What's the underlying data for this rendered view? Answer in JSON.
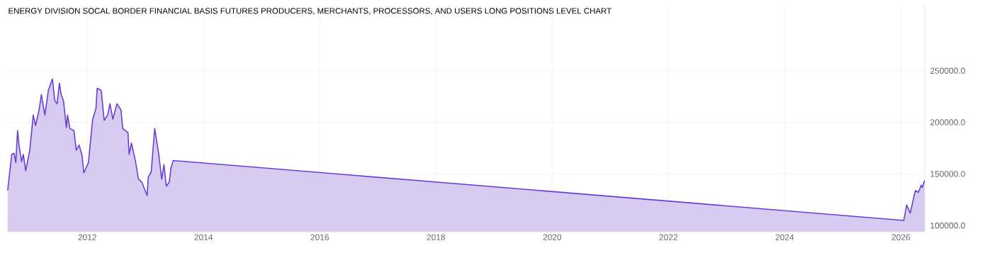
{
  "chart_data": {
    "type": "area",
    "title": "ENERGY DIVISION SOCAL BORDER FINANCIAL BASIS FUTURES PRODUCERS, MERCHANTS, PROCESSORS, AND USERS LONG POSITIONS LEVEL CHART",
    "x": [
      2010.63,
      2010.7,
      2010.74,
      2010.77,
      2010.8,
      2010.83,
      2010.87,
      2010.9,
      2010.94,
      2011.01,
      2011.07,
      2011.11,
      2011.17,
      2011.21,
      2011.27,
      2011.33,
      2011.4,
      2011.44,
      2011.48,
      2011.52,
      2011.55,
      2011.59,
      2011.64,
      2011.66,
      2011.7,
      2011.77,
      2011.81,
      2011.86,
      2011.91,
      2011.94,
      2012.02,
      2012.09,
      2012.15,
      2012.17,
      2012.24,
      2012.29,
      2012.35,
      2012.39,
      2012.44,
      2012.51,
      2012.58,
      2012.61,
      2012.7,
      2012.72,
      2012.76,
      2012.83,
      2012.88,
      2012.94,
      2012.98,
      2013.03,
      2013.05,
      2013.1,
      2013.16,
      2013.23,
      2013.28,
      2013.32,
      2013.36,
      2013.41,
      2013.44,
      2013.48,
      2026.05,
      2026.1,
      2026.16,
      2026.25,
      2026.3,
      2026.35,
      2026.37,
      2026.41
    ],
    "series": [
      {
        "color": "#6a3fd0",
        "values": [
          134000,
          169000,
          170000,
          161000,
          192000,
          176000,
          162000,
          169000,
          153000,
          173000,
          207000,
          197000,
          212000,
          227000,
          207000,
          231000,
          242000,
          221000,
          218000,
          238000,
          227000,
          221000,
          195000,
          207000,
          194000,
          192000,
          173000,
          178000,
          168000,
          151000,
          161000,
          202000,
          214000,
          233000,
          231000,
          202000,
          207000,
          218000,
          203000,
          218000,
          212000,
          194000,
          190000,
          169000,
          180000,
          162000,
          145000,
          142000,
          136000,
          129000,
          147000,
          152000,
          194000,
          169000,
          145000,
          159000,
          138000,
          142000,
          156000,
          163000,
          105000,
          120000,
          112000,
          134000,
          132000,
          139000,
          137000,
          144000
        ]
      }
    ],
    "xlim": [
      2010.62,
      2026.41
    ],
    "ylim": [
      94000,
      313000
    ],
    "xticks": [
      2012,
      2014,
      2016,
      2018,
      2020,
      2022,
      2024,
      2026
    ],
    "yticks": [
      {
        "value": 100000,
        "label": "100000.0"
      },
      {
        "value": 150000,
        "label": "150000.0"
      },
      {
        "value": 200000,
        "label": "200000.0"
      },
      {
        "value": 250000,
        "label": "250000.0"
      }
    ],
    "grid": true
  }
}
